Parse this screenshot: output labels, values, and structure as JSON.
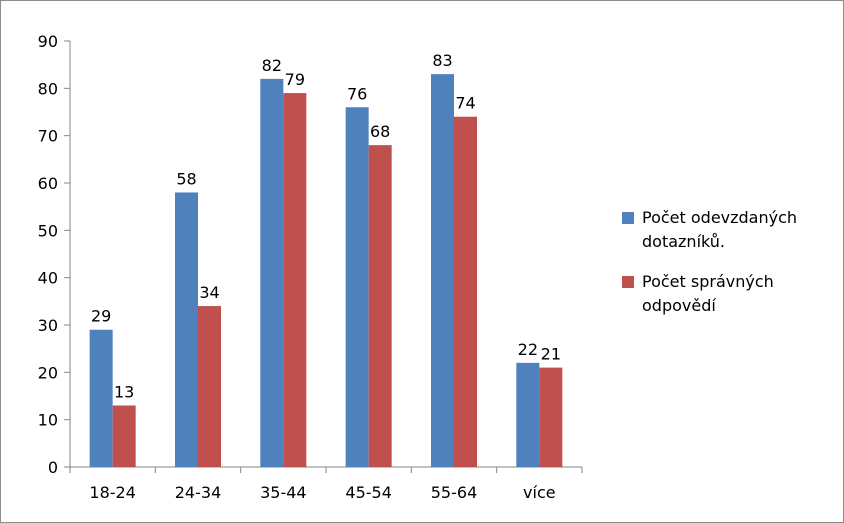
{
  "chart_data": {
    "type": "bar",
    "categories": [
      "18-24",
      "24-34",
      "35-44",
      "45-54",
      "55-64",
      "více"
    ],
    "series": [
      {
        "name": "Počet odevzdaných dotazníků.",
        "values": [
          29,
          58,
          82,
          76,
          83,
          22
        ],
        "color": "#4f81bd"
      },
      {
        "name": "Počet správných odpovědí",
        "values": [
          13,
          34,
          79,
          68,
          74,
          21
        ],
        "color": "#c0504d"
      }
    ],
    "ylim": [
      0,
      90
    ],
    "yticks": [
      "0",
      "10",
      "20",
      "30",
      "40",
      "50",
      "60",
      "70",
      "80",
      "90"
    ],
    "grid": false,
    "legend_position": "right",
    "data_labels": true
  }
}
